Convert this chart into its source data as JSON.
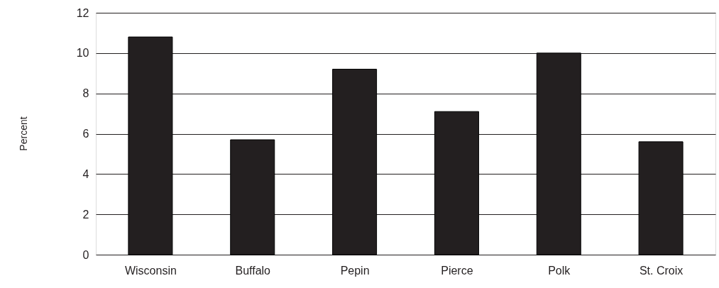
{
  "chart_data": {
    "type": "bar",
    "ylabel": "Percent",
    "categories": [
      "Wisconsin",
      "Buffalo",
      "Pepin",
      "Pierce",
      "Polk",
      "St. Croix"
    ],
    "values": [
      10.8,
      5.7,
      9.2,
      7.1,
      10.0,
      5.6
    ],
    "color": "#231f20",
    "ylim": [
      0,
      12
    ],
    "yticks": [
      0,
      2,
      4,
      6,
      8,
      10,
      12
    ],
    "grid": "y"
  }
}
